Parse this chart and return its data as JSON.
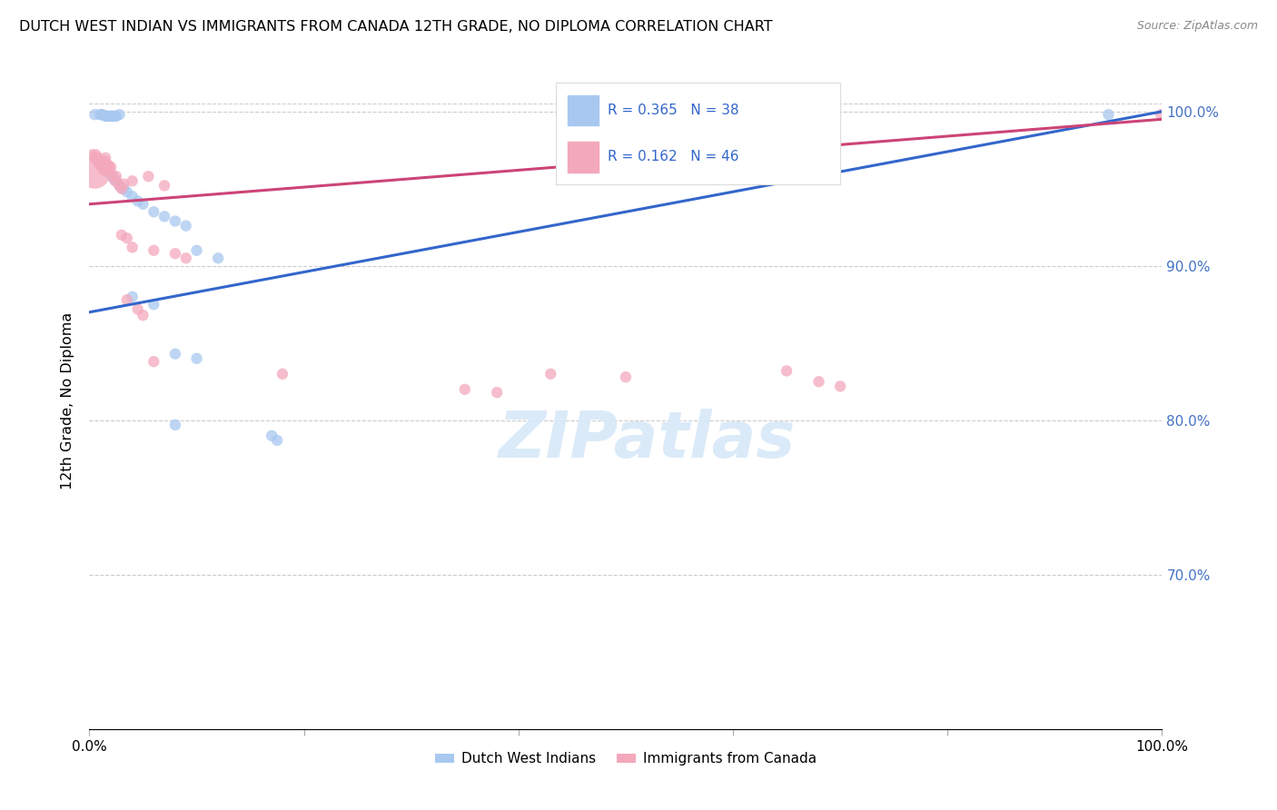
{
  "title": "DUTCH WEST INDIAN VS IMMIGRANTS FROM CANADA 12TH GRADE, NO DIPLOMA CORRELATION CHART",
  "source": "Source: ZipAtlas.com",
  "ylabel": "12th Grade, No Diploma",
  "ytick_labels": [
    "70.0%",
    "80.0%",
    "90.0%",
    "100.0%"
  ],
  "ytick_values": [
    0.7,
    0.8,
    0.9,
    1.0
  ],
  "legend_label1": "Dutch West Indians",
  "legend_label2": "Immigrants from Canada",
  "R1": 0.365,
  "N1": 38,
  "R2": 0.162,
  "N2": 46,
  "color1": "#a8c8f0",
  "color2": "#f4a8bc",
  "trendline1_color": "#3366cc",
  "trendline2_color": "#cc4477",
  "background": "#ffffff",
  "grid_color": "#cccccc",
  "right_label_color": "#4472c4",
  "ylim_min": 0.6,
  "ylim_max": 1.025,
  "xlim_min": 0.0,
  "xlim_max": 1.0,
  "blue_trendline": [
    [
      0.0,
      0.87
    ],
    [
      1.0,
      1.0
    ]
  ],
  "pink_trendline": [
    [
      0.0,
      0.94
    ],
    [
      1.0,
      0.995
    ]
  ],
  "blue_scatter": [
    [
      0.005,
      0.998
    ],
    [
      0.01,
      0.998
    ],
    [
      0.011,
      0.998
    ],
    [
      0.012,
      0.998
    ],
    [
      0.015,
      0.997
    ],
    [
      0.016,
      0.997
    ],
    [
      0.017,
      0.997
    ],
    [
      0.018,
      0.997
    ],
    [
      0.02,
      0.997
    ],
    [
      0.021,
      0.997
    ],
    [
      0.022,
      0.997
    ],
    [
      0.024,
      0.997
    ],
    [
      0.025,
      0.997
    ],
    [
      0.028,
      0.998
    ],
    [
      0.018,
      0.96
    ],
    [
      0.022,
      0.957
    ],
    [
      0.025,
      0.955
    ],
    [
      0.028,
      0.952
    ],
    [
      0.032,
      0.95
    ],
    [
      0.035,
      0.948
    ],
    [
      0.04,
      0.945
    ],
    [
      0.045,
      0.942
    ],
    [
      0.05,
      0.94
    ],
    [
      0.06,
      0.935
    ],
    [
      0.07,
      0.932
    ],
    [
      0.08,
      0.929
    ],
    [
      0.09,
      0.926
    ],
    [
      0.1,
      0.91
    ],
    [
      0.12,
      0.905
    ],
    [
      0.04,
      0.88
    ],
    [
      0.06,
      0.875
    ],
    [
      0.08,
      0.843
    ],
    [
      0.1,
      0.84
    ],
    [
      0.08,
      0.797
    ],
    [
      0.17,
      0.79
    ],
    [
      0.175,
      0.787
    ],
    [
      0.62,
      0.998
    ],
    [
      0.95,
      0.998
    ]
  ],
  "blue_sizes": [
    80,
    80,
    80,
    80,
    80,
    80,
    80,
    80,
    80,
    80,
    80,
    80,
    80,
    80,
    80,
    80,
    80,
    80,
    80,
    80,
    80,
    80,
    80,
    80,
    80,
    80,
    80,
    80,
    80,
    80,
    80,
    80,
    80,
    80,
    80,
    80,
    80,
    80
  ],
  "pink_scatter": [
    [
      0.003,
      0.972
    ],
    [
      0.005,
      0.97
    ],
    [
      0.006,
      0.972
    ],
    [
      0.007,
      0.968
    ],
    [
      0.008,
      0.97
    ],
    [
      0.009,
      0.968
    ],
    [
      0.01,
      0.965
    ],
    [
      0.011,
      0.968
    ],
    [
      0.012,
      0.965
    ],
    [
      0.013,
      0.962
    ],
    [
      0.014,
      0.968
    ],
    [
      0.015,
      0.97
    ],
    [
      0.016,
      0.966
    ],
    [
      0.017,
      0.962
    ],
    [
      0.018,
      0.965
    ],
    [
      0.019,
      0.962
    ],
    [
      0.02,
      0.964
    ],
    [
      0.022,
      0.958
    ],
    [
      0.024,
      0.955
    ],
    [
      0.025,
      0.958
    ],
    [
      0.028,
      0.952
    ],
    [
      0.03,
      0.95
    ],
    [
      0.032,
      0.953
    ],
    [
      0.04,
      0.955
    ],
    [
      0.055,
      0.958
    ],
    [
      0.07,
      0.952
    ],
    [
      0.03,
      0.92
    ],
    [
      0.035,
      0.918
    ],
    [
      0.04,
      0.912
    ],
    [
      0.06,
      0.91
    ],
    [
      0.08,
      0.908
    ],
    [
      0.09,
      0.905
    ],
    [
      0.035,
      0.878
    ],
    [
      0.045,
      0.872
    ],
    [
      0.05,
      0.868
    ],
    [
      0.06,
      0.838
    ],
    [
      0.18,
      0.83
    ],
    [
      0.35,
      0.82
    ],
    [
      0.38,
      0.818
    ],
    [
      0.43,
      0.83
    ],
    [
      0.5,
      0.828
    ],
    [
      0.005,
      0.96
    ],
    [
      0.999,
      0.998
    ],
    [
      0.65,
      0.832
    ],
    [
      0.68,
      0.825
    ],
    [
      0.7,
      0.822
    ]
  ],
  "pink_sizes": [
    80,
    80,
    80,
    80,
    80,
    80,
    80,
    80,
    80,
    80,
    80,
    80,
    80,
    80,
    80,
    80,
    80,
    80,
    80,
    80,
    80,
    80,
    80,
    80,
    80,
    80,
    80,
    80,
    80,
    80,
    80,
    80,
    80,
    80,
    80,
    80,
    80,
    80,
    80,
    80,
    80,
    600,
    80,
    80,
    80,
    80
  ]
}
